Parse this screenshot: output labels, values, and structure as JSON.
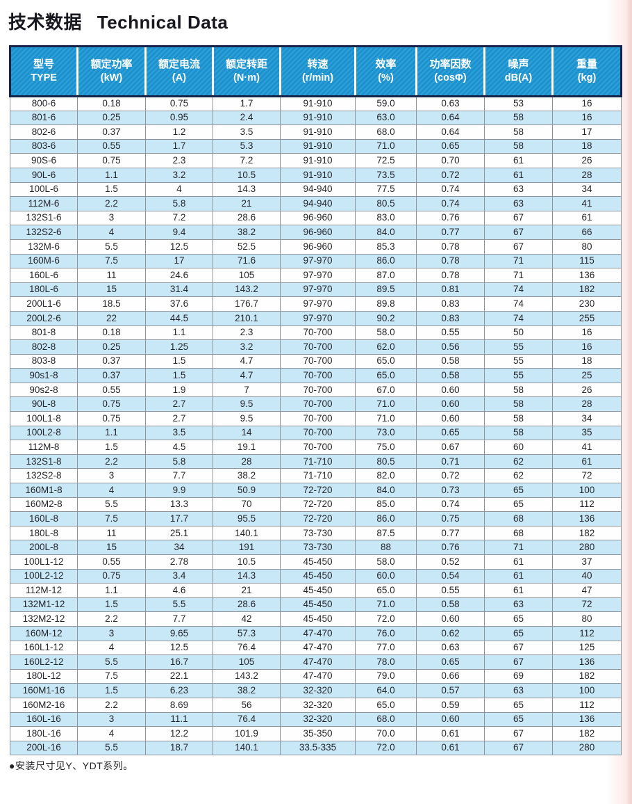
{
  "title": {
    "zh": "技术数据",
    "en": "Technical Data"
  },
  "colors": {
    "header_blue": "#1e9ad6",
    "header_edge_navy": "#15224a",
    "stripe_blue": "#c8e8f8",
    "row_white": "#fefefe",
    "grid_gray": "#8e9499",
    "page_edge_pink": "#f5d3d3"
  },
  "table": {
    "columns": [
      {
        "zh": "型号",
        "sub": "TYPE"
      },
      {
        "zh": "额定功率",
        "sub": "(kW)"
      },
      {
        "zh": "额定电流",
        "sub": "(A)"
      },
      {
        "zh": "额定转距",
        "sub": "(N·m)"
      },
      {
        "zh": "转速",
        "sub": "(r/min)"
      },
      {
        "zh": "效率",
        "sub": "(%)"
      },
      {
        "zh": "功率因数",
        "sub": "(cosΦ)"
      },
      {
        "zh": "噪声",
        "sub": "dB(A)"
      },
      {
        "zh": "重量",
        "sub": "(kg)"
      }
    ],
    "rows": [
      [
        "800-6",
        "0.18",
        "0.75",
        "1.7",
        "91-910",
        "59.0",
        "0.63",
        "53",
        "16"
      ],
      [
        "801-6",
        "0.25",
        "0.95",
        "2.4",
        "91-910",
        "63.0",
        "0.64",
        "58",
        "16"
      ],
      [
        "802-6",
        "0.37",
        "1.2",
        "3.5",
        "91-910",
        "68.0",
        "0.64",
        "58",
        "17"
      ],
      [
        "803-6",
        "0.55",
        "1.7",
        "5.3",
        "91-910",
        "71.0",
        "0.65",
        "58",
        "18"
      ],
      [
        "90S-6",
        "0.75",
        "2.3",
        "7.2",
        "91-910",
        "72.5",
        "0.70",
        "61",
        "26"
      ],
      [
        "90L-6",
        "1.1",
        "3.2",
        "10.5",
        "91-910",
        "73.5",
        "0.72",
        "61",
        "28"
      ],
      [
        "100L-6",
        "1.5",
        "4",
        "14.3",
        "94-940",
        "77.5",
        "0.74",
        "63",
        "34"
      ],
      [
        "112M-6",
        "2.2",
        "5.8",
        "21",
        "94-940",
        "80.5",
        "0.74",
        "63",
        "41"
      ],
      [
        "132S1-6",
        "3",
        "7.2",
        "28.6",
        "96-960",
        "83.0",
        "0.76",
        "67",
        "61"
      ],
      [
        "132S2-6",
        "4",
        "9.4",
        "38.2",
        "96-960",
        "84.0",
        "0.77",
        "67",
        "66"
      ],
      [
        "132M-6",
        "5.5",
        "12.5",
        "52.5",
        "96-960",
        "85.3",
        "0.78",
        "67",
        "80"
      ],
      [
        "160M-6",
        "7.5",
        "17",
        "71.6",
        "97-970",
        "86.0",
        "0.78",
        "71",
        "115"
      ],
      [
        "160L-6",
        "11",
        "24.6",
        "105",
        "97-970",
        "87.0",
        "0.78",
        "71",
        "136"
      ],
      [
        "180L-6",
        "15",
        "31.4",
        "143.2",
        "97-970",
        "89.5",
        "0.81",
        "74",
        "182"
      ],
      [
        "200L1-6",
        "18.5",
        "37.6",
        "176.7",
        "97-970",
        "89.8",
        "0.83",
        "74",
        "230"
      ],
      [
        "200L2-6",
        "22",
        "44.5",
        "210.1",
        "97-970",
        "90.2",
        "0.83",
        "74",
        "255"
      ],
      [
        "801-8",
        "0.18",
        "1.1",
        "2.3",
        "70-700",
        "58.0",
        "0.55",
        "50",
        "16"
      ],
      [
        "802-8",
        "0.25",
        "1.25",
        "3.2",
        "70-700",
        "62.0",
        "0.56",
        "55",
        "16"
      ],
      [
        "803-8",
        "0.37",
        "1.5",
        "4.7",
        "70-700",
        "65.0",
        "0.58",
        "55",
        "18"
      ],
      [
        "90s1-8",
        "0.37",
        "1.5",
        "4.7",
        "70-700",
        "65.0",
        "0.58",
        "55",
        "25"
      ],
      [
        "90s2-8",
        "0.55",
        "1.9",
        "7",
        "70-700",
        "67.0",
        "0.60",
        "58",
        "26"
      ],
      [
        "90L-8",
        "0.75",
        "2.7",
        "9.5",
        "70-700",
        "71.0",
        "0.60",
        "58",
        "28"
      ],
      [
        "100L1-8",
        "0.75",
        "2.7",
        "9.5",
        "70-700",
        "71.0",
        "0.60",
        "58",
        "34"
      ],
      [
        "100L2-8",
        "1.1",
        "3.5",
        "14",
        "70-700",
        "73.0",
        "0.65",
        "58",
        "35"
      ],
      [
        "112M-8",
        "1.5",
        "4.5",
        "19.1",
        "70-700",
        "75.0",
        "0.67",
        "60",
        "41"
      ],
      [
        "132S1-8",
        "2.2",
        "5.8",
        "28",
        "71-710",
        "80.5",
        "0.71",
        "62",
        "61"
      ],
      [
        "132S2-8",
        "3",
        "7.7",
        "38.2",
        "71-710",
        "82.0",
        "0.72",
        "62",
        "72"
      ],
      [
        "160M1-8",
        "4",
        "9.9",
        "50.9",
        "72-720",
        "84.0",
        "0.73",
        "65",
        "100"
      ],
      [
        "160M2-8",
        "5.5",
        "13.3",
        "70",
        "72-720",
        "85.0",
        "0.74",
        "65",
        "112"
      ],
      [
        "160L-8",
        "7.5",
        "17.7",
        "95.5",
        "72-720",
        "86.0",
        "0.75",
        "68",
        "136"
      ],
      [
        "180L-8",
        "11",
        "25.1",
        "140.1",
        "73-730",
        "87.5",
        "0.77",
        "68",
        "182"
      ],
      [
        "200L-8",
        "15",
        "34",
        "191",
        "73-730",
        "88",
        "0.76",
        "71",
        "280"
      ],
      [
        "100L1-12",
        "0.55",
        "2.78",
        "10.5",
        "45-450",
        "58.0",
        "0.52",
        "61",
        "37"
      ],
      [
        "100L2-12",
        "0.75",
        "3.4",
        "14.3",
        "45-450",
        "60.0",
        "0.54",
        "61",
        "40"
      ],
      [
        "112M-12",
        "1.1",
        "4.6",
        "21",
        "45-450",
        "65.0",
        "0.55",
        "61",
        "47"
      ],
      [
        "132M1-12",
        "1.5",
        "5.5",
        "28.6",
        "45-450",
        "71.0",
        "0.58",
        "63",
        "72"
      ],
      [
        "132M2-12",
        "2.2",
        "7.7",
        "42",
        "45-450",
        "72.0",
        "0.60",
        "65",
        "80"
      ],
      [
        "160M-12",
        "3",
        "9.65",
        "57.3",
        "47-470",
        "76.0",
        "0.62",
        "65",
        "112"
      ],
      [
        "160L1-12",
        "4",
        "12.5",
        "76.4",
        "47-470",
        "77.0",
        "0.63",
        "67",
        "125"
      ],
      [
        "160L2-12",
        "5.5",
        "16.7",
        "105",
        "47-470",
        "78.0",
        "0.65",
        "67",
        "136"
      ],
      [
        "180L-12",
        "7.5",
        "22.1",
        "143.2",
        "47-470",
        "79.0",
        "0.66",
        "69",
        "182"
      ],
      [
        "160M1-16",
        "1.5",
        "6.23",
        "38.2",
        "32-320",
        "64.0",
        "0.57",
        "63",
        "100"
      ],
      [
        "160M2-16",
        "2.2",
        "8.69",
        "56",
        "32-320",
        "65.0",
        "0.59",
        "65",
        "112"
      ],
      [
        "160L-16",
        "3",
        "11.1",
        "76.4",
        "32-320",
        "68.0",
        "0.60",
        "65",
        "136"
      ],
      [
        "180L-16",
        "4",
        "12.2",
        "101.9",
        "35-350",
        "70.0",
        "0.61",
        "67",
        "182"
      ],
      [
        "200L-16",
        "5.5",
        "18.7",
        "140.1",
        "33.5-335",
        "72.0",
        "0.61",
        "67",
        "280"
      ]
    ]
  },
  "footer": {
    "note": "●安装尺寸见Y、YDT系列。"
  }
}
